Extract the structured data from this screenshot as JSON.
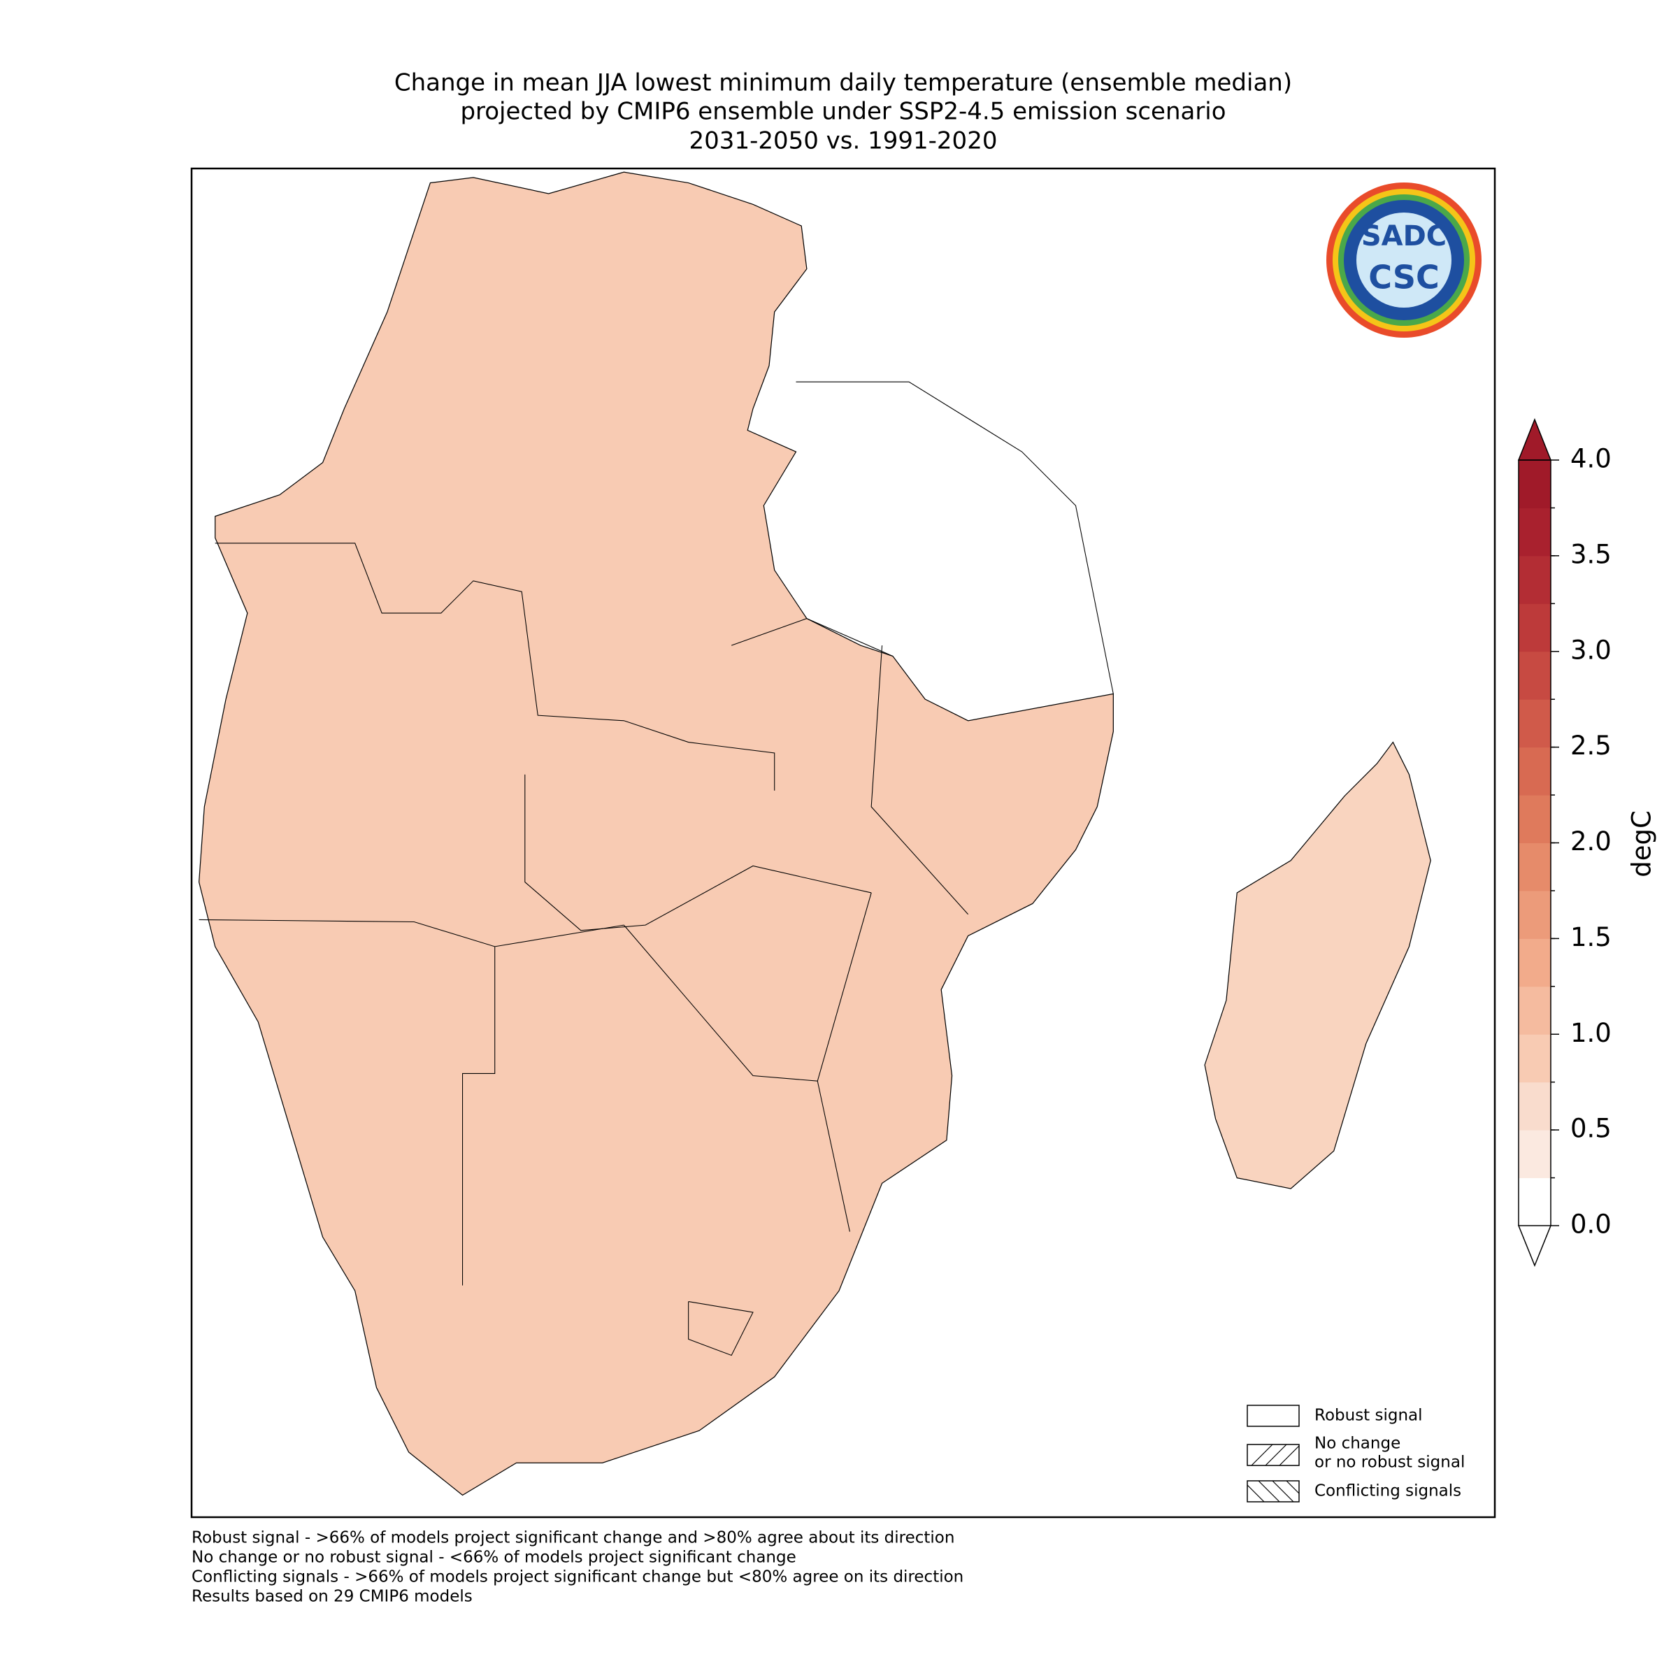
{
  "map": {
    "title": [
      "Change in mean JJA lowest minimum daily temperature (ensemble median)",
      "projected by CMIP6 ensemble under SSP2-4.5 emission scenario",
      "2031-2050 vs. 1991-2020"
    ],
    "logo": [
      "SADC",
      "CSC"
    ],
    "colorbar": {
      "label": "degC",
      "lim": [
        0,
        4
      ],
      "ticks": [
        {
          "value": 0,
          "label": "0.0"
        },
        0.5,
        {
          "value": 1,
          "label": "1.0"
        },
        1.5,
        {
          "value": 2,
          "label": "2.0"
        },
        2.5,
        {
          "value": 3,
          "label": "3.0"
        },
        3.5,
        {
          "value": 4,
          "label": "4.0"
        }
      ],
      "colors": [
        "#ffffff",
        "#fbe9e0",
        "#f9dccd",
        "#f8cbb3",
        "#f5bb9f",
        "#f2ab8b",
        "#ec9b7a",
        "#e68b6a",
        "#df7a5c",
        "#d86a52",
        "#d05a4a",
        "#c74a42",
        "#bd3a3a",
        "#b32d34",
        "#a9212e",
        "#a01a29"
      ],
      "under_color": "#ffffff",
      "over_color": "#a01a29"
    },
    "legend": [
      [
        "Robust signal"
      ],
      [
        "No change",
        "or no robust signal"
      ],
      [
        "Conflicting signals"
      ]
    ],
    "footnotes": [
      "Robust signal - >66% of models project significant change and >80% agree about its direction",
      "No change or no robust signal - <66% of models project significant change",
      "Conflicting signals - >66% of models project significant change but <80% agree on its direction",
      "Results based on 29 CMIP6 models"
    ]
  }
}
